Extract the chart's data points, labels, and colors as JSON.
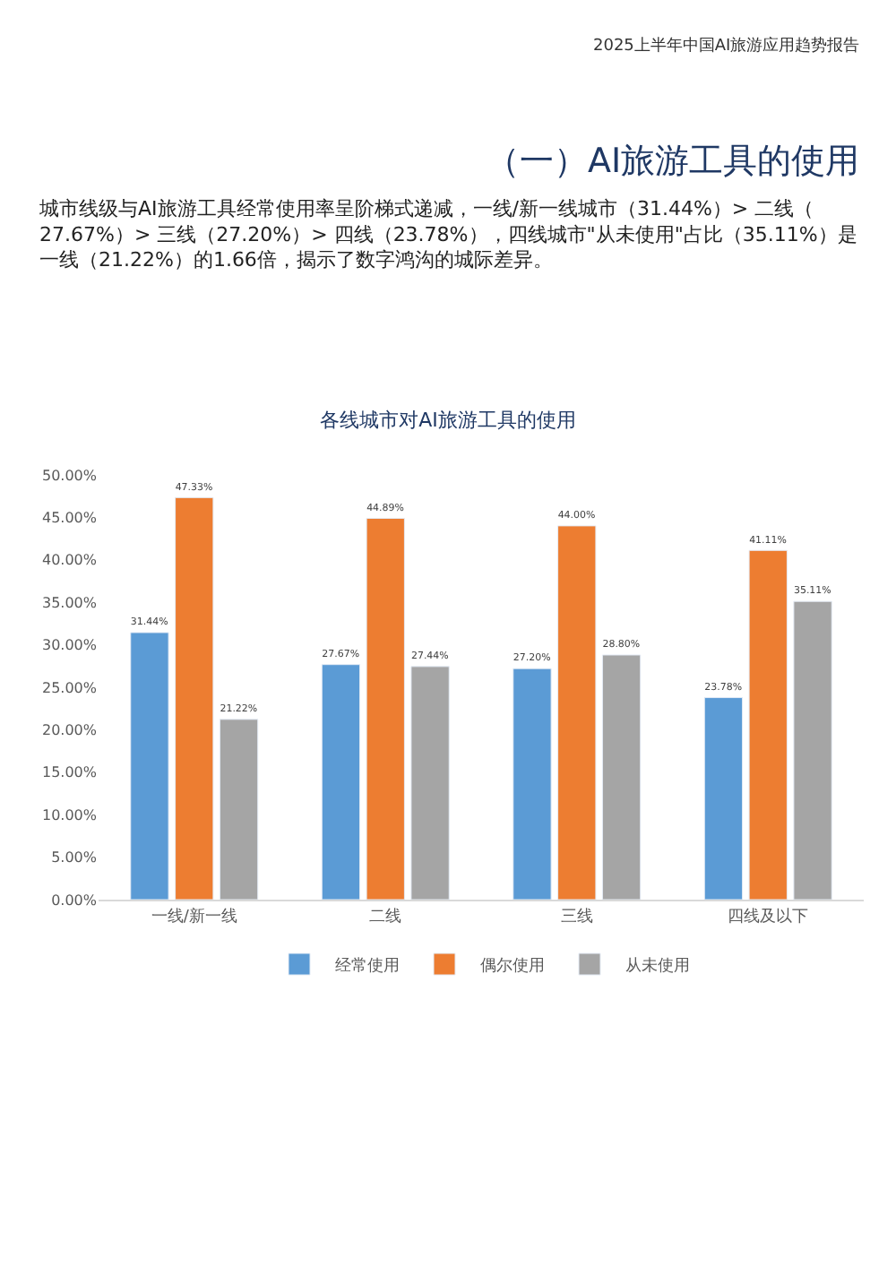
{
  "chart_data": {
    "type": "bar",
    "title": "各线城市对AI旅游工具的使用",
    "annotations": [
      "2025上半年中国AI旅游应用趋势报告",
      "（一）AI旅游工具的使用",
      "城市线级与AI旅游工具经常使用率呈阶梯式递减，一线/新一线城市（31.44%）> 二线（27.67%）> 三线（27.20%）> 四线（23.78%），四线城市\"从未使用\"占比（35.11%）是一线（21.22%）的1.66倍，揭示了数字鸿沟的城际差异。"
    ],
    "categories": [
      "一线/新一线",
      "二线",
      "三线",
      "四线及以下"
    ],
    "series": [
      {
        "name": "经常使用",
        "color": "#5b9bd5",
        "values": [
          31.44,
          27.67,
          27.2,
          23.78
        ],
        "value_labels": [
          "31.44%",
          "27.67%",
          "27.20%",
          "23.78%"
        ]
      },
      {
        "name": "偶尔使用",
        "color": "#ed7d31",
        "values": [
          47.33,
          44.89,
          44.0,
          41.11
        ],
        "value_labels": [
          "47.33%",
          "44.89%",
          "44.00%",
          "41.11%"
        ]
      },
      {
        "name": "从未使用",
        "color": "#a5a5a5",
        "values": [
          21.22,
          27.44,
          28.8,
          35.11
        ],
        "value_labels": [
          "21.22%",
          "27.44%",
          "28.80%",
          "35.11%"
        ]
      }
    ],
    "ylim": [
      0,
      50
    ],
    "yticks": [
      {
        "value": 0,
        "label": "0.00%"
      },
      {
        "value": 5,
        "label": "5.00%"
      },
      {
        "value": 10,
        "label": "10.00%"
      },
      {
        "value": 15,
        "label": "15.00%"
      },
      {
        "value": 20,
        "label": "20.00%"
      },
      {
        "value": 25,
        "label": "25.00%"
      },
      {
        "value": 30,
        "label": "30.00%"
      },
      {
        "value": 35,
        "label": "35.00%"
      },
      {
        "value": 40,
        "label": "40.00%"
      },
      {
        "value": 45,
        "label": "45.00%"
      },
      {
        "value": 50,
        "label": "50.00%"
      }
    ],
    "grid": false,
    "legend": "bottom"
  }
}
